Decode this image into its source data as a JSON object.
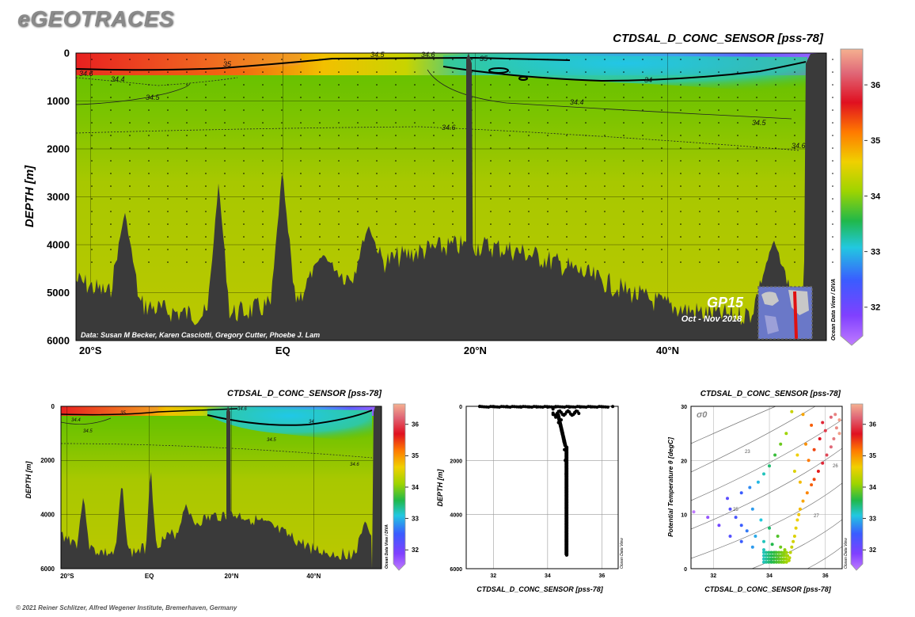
{
  "brand": "eGEOTRACES",
  "copyright": "© 2021 Reiner Schlitzer, Alfred Wegener Institute, Bremerhaven, Germany",
  "colors": {
    "bathymetry": "#3a3a3a",
    "background_field": "#bcc800",
    "colorbar_stops": [
      "#b06cff",
      "#7a3cff",
      "#3a5cff",
      "#22c8e0",
      "#20b84a",
      "#9ed400",
      "#f0d000",
      "#ff7a00",
      "#e01020",
      "#e06878",
      "#f5b090"
    ]
  },
  "section": {
    "title": "CTDSAL_D_CONC_SENSOR [pss-78]",
    "ylabel": "DEPTH [m]",
    "credit": "Data: Susan M Becker, Karen Casciotti, Gregory Cutter, Phoebe J. Lam",
    "cruise": "GP15",
    "period": "Oct - Nov 2018",
    "odv": "Ocean Data View / DIVA"
  },
  "chart_data": [
    {
      "type": "heatmap",
      "id": "main-section",
      "title": "CTDSAL_D_CONC_SENSOR [pss-78]",
      "ylabel": "DEPTH [m]",
      "x_ticks": [
        "20°S",
        "EQ",
        "20°N",
        "40°N"
      ],
      "x_tick_values": [
        -20,
        0,
        20,
        40
      ],
      "xlim": [
        -21.5,
        56.5
      ],
      "y_ticks": [
        "0",
        "1000",
        "2000",
        "3000",
        "4000",
        "5000",
        "6000"
      ],
      "ylim": [
        0,
        6000
      ],
      "colorbar_ticks": [
        "32",
        "33",
        "34",
        "35",
        "36"
      ],
      "colorbar_range": [
        31.4,
        36.6
      ],
      "contour_labels": [
        "35",
        "34.5",
        "34.6",
        "34.4",
        "34.5",
        "34.6",
        "35",
        "34",
        "34.4",
        "34.6",
        "34.5",
        "34.6"
      ],
      "grid": true
    },
    {
      "type": "heatmap",
      "id": "small-section",
      "title": "CTDSAL_D_CONC_SENSOR [pss-78]",
      "ylabel": "DEPTH [m]",
      "x_ticks": [
        "20°S",
        "EQ",
        "20°N",
        "40°N"
      ],
      "x_tick_values": [
        -20,
        0,
        20,
        40
      ],
      "xlim": [
        -21.5,
        56.5
      ],
      "y_ticks": [
        "0",
        "2000",
        "4000",
        "6000"
      ],
      "ylim": [
        0,
        6000
      ],
      "colorbar_ticks": [
        "32",
        "33",
        "34",
        "35",
        "36"
      ],
      "colorbar_range": [
        31.4,
        36.6
      ],
      "contour_labels": [
        "35",
        "34.4",
        "34.5",
        "34.6",
        "34",
        "34.5",
        "34.6"
      ],
      "odv": "Ocean Data View / DIVA",
      "grid": true
    },
    {
      "type": "scatter",
      "id": "profile",
      "xlabel": "CTDSAL_D_CONC_SENSOR [pss-78]",
      "ylabel": "DEPTH [m]",
      "x_ticks": [
        "32",
        "34",
        "36"
      ],
      "x_tick_values": [
        32,
        34,
        36
      ],
      "xlim": [
        31,
        36.6
      ],
      "y_ticks": [
        "0",
        "2000",
        "4000",
        "6000"
      ],
      "ylim": [
        0,
        6000
      ],
      "odv": "Ocean Data View",
      "points": [
        [
          31.5,
          0
        ],
        [
          32.0,
          5
        ],
        [
          32.5,
          10
        ],
        [
          33.0,
          15
        ],
        [
          33.3,
          20
        ],
        [
          33.6,
          25
        ],
        [
          34.0,
          30
        ],
        [
          34.3,
          20
        ],
        [
          34.8,
          30
        ],
        [
          35.2,
          25
        ],
        [
          35.6,
          20
        ],
        [
          36.0,
          15
        ],
        [
          36.4,
          10
        ],
        [
          34.2,
          100
        ],
        [
          34.4,
          200
        ],
        [
          34.2,
          300
        ],
        [
          34.6,
          300
        ],
        [
          35.0,
          250
        ],
        [
          34.3,
          400
        ],
        [
          34.5,
          500
        ],
        [
          34.4,
          600
        ],
        [
          34.5,
          800
        ],
        [
          34.55,
          1000
        ],
        [
          34.6,
          1300
        ],
        [
          34.62,
          1600
        ],
        [
          34.65,
          2000
        ],
        [
          34.68,
          2500
        ],
        [
          34.7,
          3000
        ],
        [
          34.7,
          3500
        ],
        [
          34.7,
          4000
        ],
        [
          34.7,
          4500
        ],
        [
          34.7,
          5000
        ],
        [
          34.7,
          5500
        ]
      ]
    },
    {
      "type": "scatter",
      "id": "ts-diagram",
      "title": "CTDSAL_D_CONC_SENSOR [pss-78]",
      "xlabel": "CTDSAL_D_CONC_SENSOR [pss-78]",
      "ylabel": "Potential Temperature θ [degC]",
      "x_ticks": [
        "32",
        "34",
        "36"
      ],
      "x_tick_values": [
        32,
        34,
        36
      ],
      "xlim": [
        31.2,
        36.6
      ],
      "y_ticks": [
        "0",
        "10",
        "20",
        "30"
      ],
      "ylim": [
        0,
        30
      ],
      "isopycnal_labels": [
        "σ0",
        "23",
        "25",
        "26",
        "27"
      ],
      "colorbar_ticks": [
        "32",
        "33",
        "34",
        "35",
        "36"
      ],
      "colorbar_range": [
        31.4,
        36.6
      ],
      "odv": "Ocean Data View",
      "points": [
        [
          34.7,
          1.5
        ],
        [
          34.72,
          2.0
        ],
        [
          34.75,
          3.0
        ],
        [
          34.8,
          4.0
        ],
        [
          34.85,
          5.0
        ],
        [
          34.9,
          6.0
        ],
        [
          34.95,
          7.5
        ],
        [
          35.0,
          9.0
        ],
        [
          35.05,
          10.0
        ],
        [
          35.1,
          11.0
        ],
        [
          35.2,
          12.5
        ],
        [
          35.35,
          14.0
        ],
        [
          35.5,
          15.5
        ],
        [
          35.6,
          16.5
        ],
        [
          35.75,
          18.0
        ],
        [
          35.9,
          19.5
        ],
        [
          36.05,
          21.0
        ],
        [
          36.2,
          22.5
        ],
        [
          36.3,
          24.0
        ],
        [
          36.4,
          26.0
        ],
        [
          36.5,
          27.5
        ],
        [
          36.2,
          28.0
        ],
        [
          35.9,
          27.0
        ],
        [
          35.5,
          26.5
        ],
        [
          35.2,
          28.5
        ],
        [
          34.8,
          29.0
        ],
        [
          34.4,
          4.0
        ],
        [
          34.1,
          4.5
        ],
        [
          33.8,
          5.0
        ],
        [
          33.5,
          6.0
        ],
        [
          33.2,
          7.0
        ],
        [
          33.0,
          8.0
        ],
        [
          32.8,
          9.5
        ],
        [
          32.6,
          11.0
        ],
        [
          32.5,
          13.0
        ],
        [
          33.0,
          14.0
        ],
        [
          33.3,
          15.0
        ],
        [
          33.6,
          16.0
        ],
        [
          33.8,
          17.5
        ],
        [
          34.0,
          19.0
        ],
        [
          34.2,
          21.0
        ],
        [
          34.4,
          23.0
        ],
        [
          34.6,
          25.0
        ],
        [
          31.3,
          10.5
        ],
        [
          31.8,
          9.5
        ],
        [
          32.2,
          8.0
        ],
        [
          32.6,
          6.0
        ],
        [
          33.0,
          5.0
        ],
        [
          33.4,
          4.0
        ],
        [
          33.8,
          3.5
        ],
        [
          34.2,
          3.0
        ],
        [
          34.5,
          2.5
        ],
        [
          34.5,
          1.2
        ],
        [
          34.6,
          1.8
        ],
        [
          34.65,
          2.4
        ],
        [
          34.55,
          3.5
        ],
        [
          34.3,
          6.0
        ],
        [
          34.0,
          7.5
        ],
        [
          33.7,
          9.0
        ],
        [
          33.4,
          11.0
        ],
        [
          35.4,
          20.0
        ],
        [
          35.6,
          22.0
        ],
        [
          35.8,
          24.0
        ],
        [
          36.0,
          25.5
        ],
        [
          35.3,
          23.0
        ],
        [
          35.0,
          21.0
        ],
        [
          34.9,
          18.0
        ],
        [
          35.1,
          16.0
        ],
        [
          36.35,
          28.5
        ],
        [
          36.5,
          25.0
        ]
      ]
    }
  ]
}
